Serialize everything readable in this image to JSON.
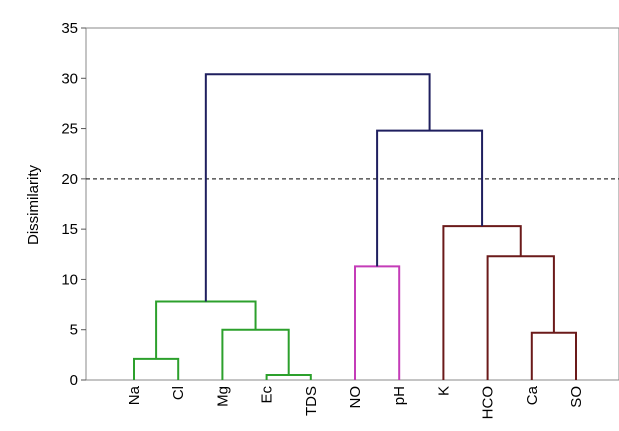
{
  "chart_data": {
    "type": "dendrogram",
    "title": "",
    "xlabel": "",
    "ylabel": "Dissimilarity",
    "ylim": [
      0,
      35
    ],
    "yticks": [
      0,
      5,
      10,
      15,
      20,
      25,
      30,
      35
    ],
    "leaves": [
      "Na",
      "Cl",
      "Mg",
      "Ec",
      "TDS",
      "NO",
      "pH",
      "K",
      "HCO",
      "Ca",
      "SO"
    ],
    "cut_line": {
      "value": 20,
      "style": "dashed"
    },
    "merges": [
      {
        "left": "Na",
        "right": "Cl",
        "height": 2.1,
        "color": "#2ca02c"
      },
      {
        "left": "Ec",
        "right": "TDS",
        "height": 0.5,
        "color": "#2ca02c"
      },
      {
        "left": "Mg",
        "right": "Ec+TDS",
        "height": 5.0,
        "color": "#2ca02c"
      },
      {
        "left": "Na+Cl",
        "right": "Mg+Ec+TDS",
        "height": 7.8,
        "color": "#2ca02c"
      },
      {
        "left": "NO",
        "right": "pH",
        "height": 11.3,
        "color": "#c43cb8"
      },
      {
        "left": "Ca",
        "right": "SO",
        "height": 4.7,
        "color": "#6b1a1a"
      },
      {
        "left": "HCO",
        "right": "Ca+SO",
        "height": 12.3,
        "color": "#6b1a1a"
      },
      {
        "left": "K",
        "right": "HCO+Ca+SO",
        "height": 15.3,
        "color": "#6b1a1a"
      },
      {
        "left": "NO+pH",
        "right": "K+HCO+Ca+SO",
        "height": 24.8,
        "color": "#1f1f5f"
      },
      {
        "left": "Na+Cl+Mg+Ec+TDS",
        "right": "NO+pH+K+HCO+Ca+SO",
        "height": 30.4,
        "color": "#1f1f5f"
      }
    ],
    "clusters": [
      {
        "members": [
          "Na",
          "Cl",
          "Mg",
          "Ec",
          "TDS"
        ],
        "color": "#2ca02c"
      },
      {
        "members": [
          "NO",
          "pH"
        ],
        "color": "#c43cb8"
      },
      {
        "members": [
          "K",
          "HCO",
          "Ca",
          "SO"
        ],
        "color": "#6b1a1a"
      }
    ],
    "grid": false,
    "legend": "none"
  }
}
